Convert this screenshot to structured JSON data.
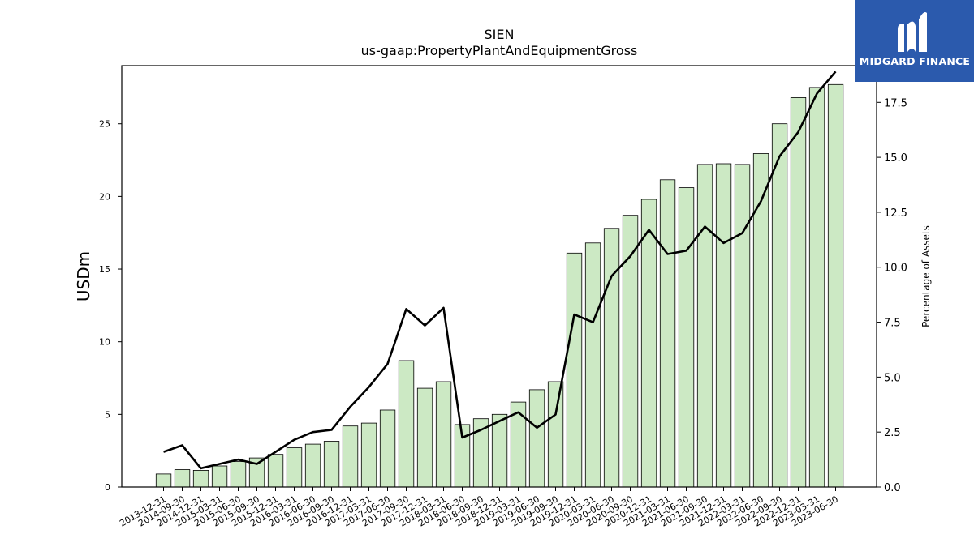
{
  "brand": {
    "name": "MIDGARD FINANCE",
    "bg_color": "#2b5aad"
  },
  "chart_data": {
    "type": "bar",
    "title": "SIEN",
    "subtitle": "us-gaap:PropertyPlantAndEquipmentGross",
    "ylabel": "USDm",
    "y2label": "Percentage of Assets",
    "ylim": [
      0,
      29.0
    ],
    "y2lim": [
      0,
      19.17
    ],
    "yticks": [
      0,
      5,
      10,
      15,
      20,
      25
    ],
    "y2ticks": [
      0.0,
      2.5,
      5.0,
      7.5,
      10.0,
      12.5,
      15.0,
      17.5
    ],
    "bar_color": "#cce9c4",
    "line_color": "#000000",
    "categories": [
      "2013-12-31",
      "2014-09-30",
      "2014-12-31",
      "2015-03-31",
      "2015-06-30",
      "2015-09-30",
      "2015-12-31",
      "2016-03-31",
      "2016-06-30",
      "2016-09-30",
      "2016-12-31",
      "2017-03-31",
      "2017-06-30",
      "2017-09-30",
      "2017-12-31",
      "2018-03-31",
      "2018-06-30",
      "2018-09-30",
      "2018-12-31",
      "2019-03-31",
      "2019-06-30",
      "2019-09-30",
      "2019-12-31",
      "2020-03-31",
      "2020-06-30",
      "2020-09-30",
      "2020-12-31",
      "2021-03-31",
      "2021-06-30",
      "2021-09-30",
      "2021-12-31",
      "2022-03-31",
      "2022-06-30",
      "2022-09-30",
      "2022-12-31",
      "2023-03-31",
      "2023-06-30"
    ],
    "series": [
      {
        "type": "bar",
        "axis": "left",
        "values": [
          0.9,
          1.2,
          1.15,
          1.45,
          1.75,
          2.0,
          2.25,
          2.7,
          2.95,
          3.15,
          4.2,
          4.4,
          5.3,
          8.7,
          6.8,
          7.25,
          4.3,
          4.7,
          5.0,
          5.85,
          6.7,
          7.25,
          16.1,
          16.8,
          17.8,
          18.7,
          19.8,
          21.15,
          20.6,
          22.2,
          22.25,
          22.2,
          22.95,
          25.0,
          26.8,
          27.5,
          27.7
        ]
      },
      {
        "type": "line",
        "axis": "right",
        "values": [
          1.6,
          1.9,
          0.85,
          1.05,
          1.25,
          1.05,
          1.6,
          2.15,
          2.5,
          2.6,
          3.65,
          4.55,
          5.6,
          8.1,
          7.35,
          8.15,
          2.25,
          2.6,
          3.0,
          3.4,
          2.7,
          3.3,
          7.85,
          7.5,
          9.6,
          10.5,
          11.7,
          10.6,
          10.75,
          11.85,
          11.1,
          11.55,
          13.0,
          15.05,
          16.15,
          17.9,
          18.9
        ]
      }
    ]
  }
}
